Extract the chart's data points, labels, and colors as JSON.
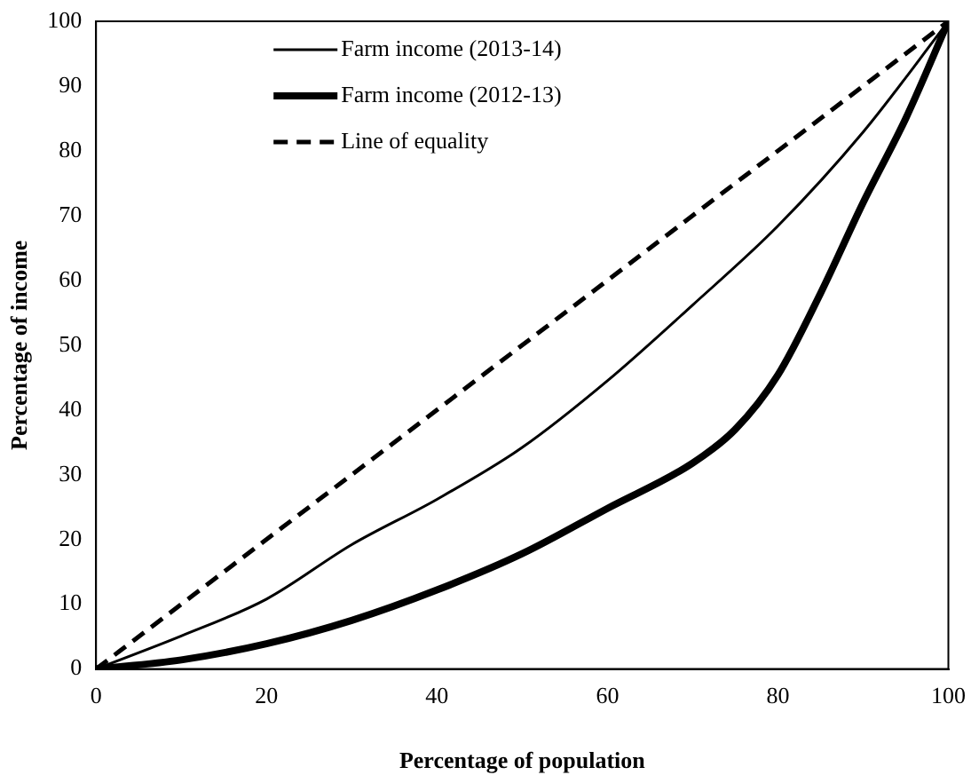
{
  "chart_data": {
    "type": "line",
    "xlabel": "Percentage of population",
    "ylabel": "Percentage of income",
    "xlim": [
      0,
      100
    ],
    "ylim": [
      0,
      100
    ],
    "xticks": [
      0,
      20,
      40,
      60,
      80,
      100
    ],
    "yticks": [
      0,
      10,
      20,
      30,
      40,
      50,
      60,
      70,
      80,
      90,
      100
    ],
    "grid": false,
    "legend": "top left",
    "marker": "none",
    "series": [
      {
        "name": "Farm income (2013-14)",
        "color": "#000000",
        "x": [
          0,
          10,
          20,
          30,
          40,
          50,
          60,
          70,
          80,
          90,
          100
        ],
        "values": [
          0,
          5.1,
          10.8,
          19.2,
          26.2,
          34.2,
          44.5,
          56.2,
          68.4,
          82.9,
          100
        ]
      },
      {
        "name": "Farm income (2012-13)",
        "color": "#000000",
        "x": [
          0,
          10,
          20,
          30,
          40,
          50,
          60,
          70,
          75,
          80,
          85,
          90,
          95,
          100
        ],
        "values": [
          0,
          1.4,
          3.9,
          7.5,
          12.2,
          17.8,
          24.8,
          31.8,
          37,
          45.4,
          58,
          72,
          85,
          100
        ]
      },
      {
        "name": "Line of equality",
        "color": "#000000",
        "x": [
          0,
          100
        ],
        "values": [
          0,
          100
        ],
        "line_style": "dashed"
      }
    ]
  }
}
